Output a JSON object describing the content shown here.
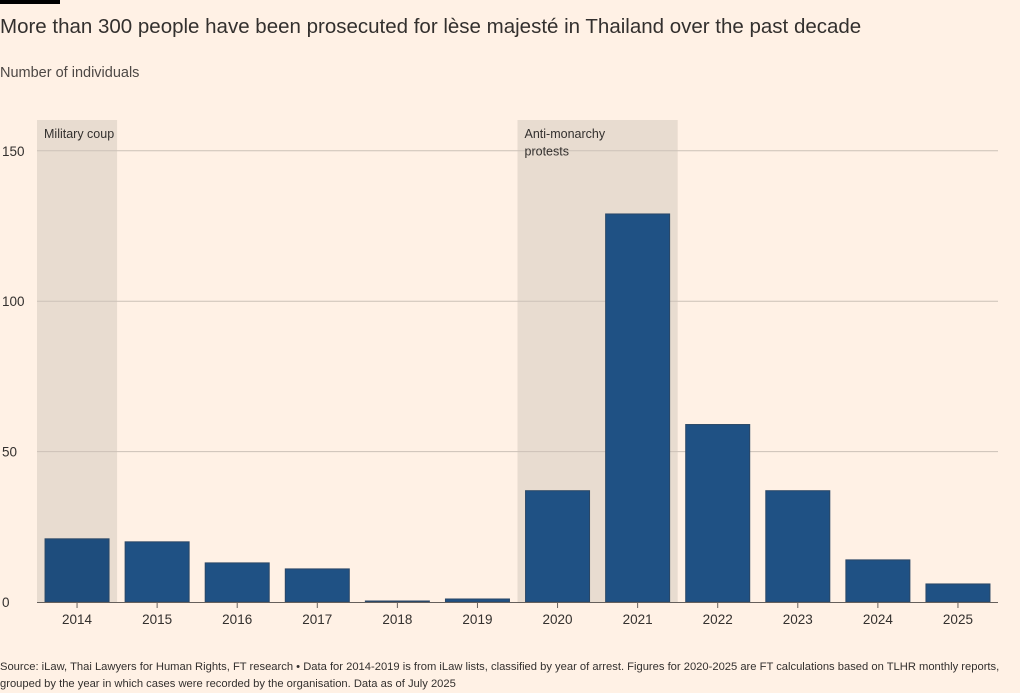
{
  "title": "More than 300 people have been prosecuted for lèse majesté in Thailand over the past decade",
  "subtitle": "Number of individuals",
  "source": "Source: iLaw, Thai Lawyers for Human Rights, FT research • Data for 2014-2019 is from iLaw lists, classified by year of arrest. Figures for 2020-2025 are FT calculations based on TLHR monthly reports, grouped by the year in which cases were recorded by the organisation. Data as of July 2025",
  "colors": {
    "background": "#fff1e5",
    "bar": "#1f5184",
    "bar_dark": "#1e4d7d",
    "shade": "#e8dcd0",
    "grid": "#ccc1b7",
    "text": "#33302e"
  },
  "chart_data": {
    "type": "bar",
    "categories": [
      "2014",
      "2015",
      "2016",
      "2017",
      "2018",
      "2019",
      "2020",
      "2021",
      "2022",
      "2023",
      "2024",
      "2025"
    ],
    "values": [
      21,
      20,
      13,
      11,
      0,
      1,
      37,
      129,
      59,
      37,
      14,
      6
    ],
    "ylim": [
      0,
      160
    ],
    "yticks": [
      0,
      50,
      100,
      150
    ],
    "grid": true,
    "annotations": [
      {
        "label": [
          "Military coup"
        ],
        "from": "2014",
        "to": "2014"
      },
      {
        "label": [
          "Anti-monarchy",
          "protests"
        ],
        "from": "2020",
        "to": "2021"
      }
    ]
  }
}
